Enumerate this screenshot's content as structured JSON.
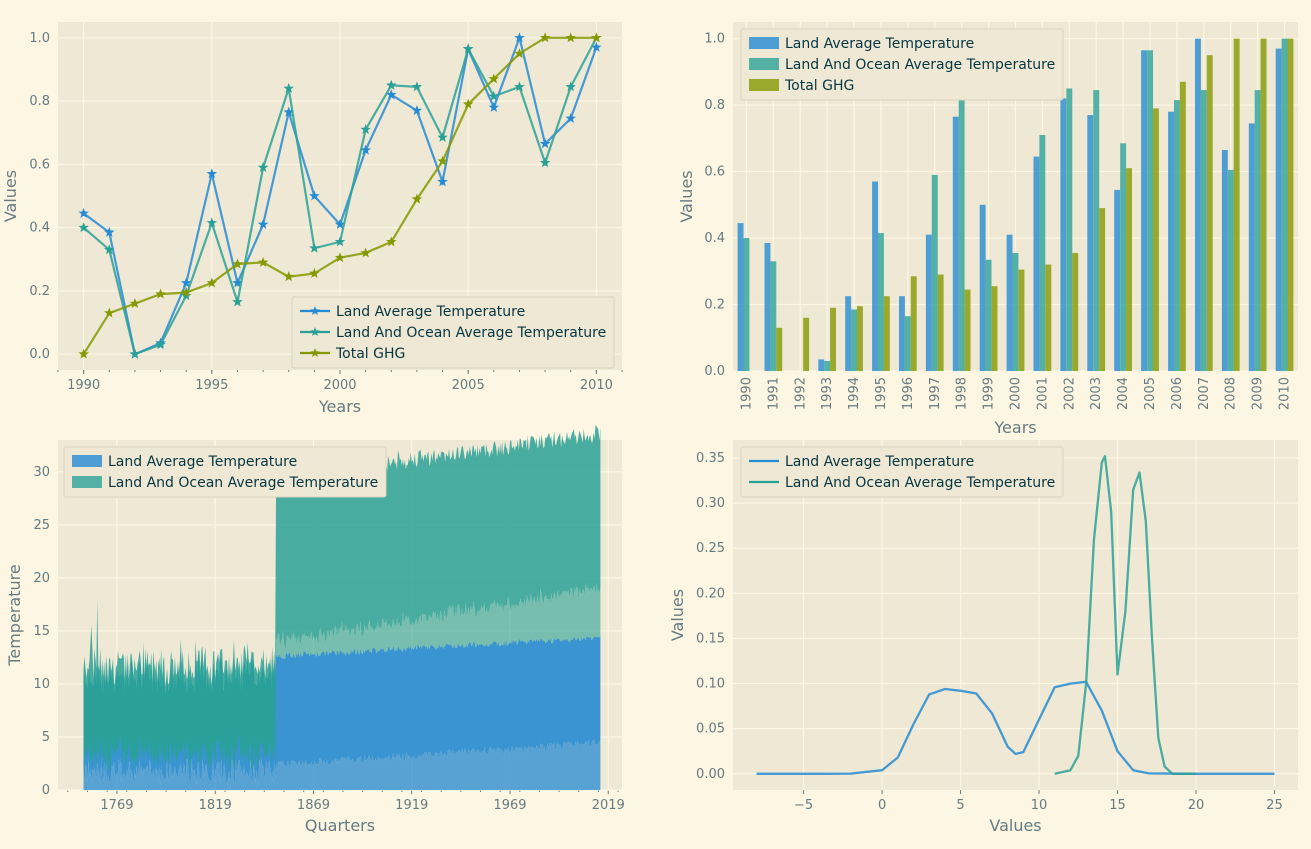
{
  "colors": {
    "figure_bg": "#fdf6e3",
    "axes_bg": "#eee8d5",
    "grid": "#fdf6e3",
    "land": "#268bd2",
    "land_ocean": "#2aa198",
    "ghg": "#859900",
    "text": "#657b83"
  },
  "chart_data": [
    {
      "type": "line",
      "marker": "star",
      "xlabel": "Years",
      "ylabel": "Values",
      "x": [
        1990,
        1991,
        1992,
        1993,
        1994,
        1995,
        1996,
        1997,
        1998,
        1999,
        2000,
        2001,
        2002,
        2003,
        2004,
        2005,
        2006,
        2007,
        2008,
        2009,
        2010
      ],
      "xlim": [
        1989,
        2011
      ],
      "ylim": [
        -0.05,
        1.05
      ],
      "xticks": [
        "1990",
        "1995",
        "2000",
        "2005",
        "2010"
      ],
      "yticks": [
        "0.0",
        "0.2",
        "0.4",
        "0.6",
        "0.8",
        "1.0"
      ],
      "legend_position": "lower-right",
      "series": [
        {
          "name": "Land Average Temperature",
          "color": "land",
          "values": [
            0.445,
            0.385,
            0.0,
            0.035,
            0.225,
            0.57,
            0.225,
            0.41,
            0.765,
            0.5,
            0.41,
            0.645,
            0.82,
            0.77,
            0.545,
            0.965,
            0.78,
            1.0,
            0.665,
            0.745,
            0.97
          ]
        },
        {
          "name": "Land And Ocean Average Temperature",
          "color": "land_ocean",
          "values": [
            0.4,
            0.33,
            0.0,
            0.03,
            0.185,
            0.415,
            0.165,
            0.59,
            0.84,
            0.335,
            0.355,
            0.71,
            0.85,
            0.845,
            0.685,
            0.965,
            0.815,
            0.845,
            0.605,
            0.845,
            1.0
          ]
        },
        {
          "name": "Total GHG",
          "color": "ghg",
          "values": [
            0.0,
            0.13,
            0.16,
            0.19,
            0.195,
            0.225,
            0.285,
            0.29,
            0.245,
            0.255,
            0.305,
            0.32,
            0.355,
            0.49,
            0.61,
            0.79,
            0.87,
            0.95,
            1.0,
            1.0,
            1.0
          ]
        }
      ]
    },
    {
      "type": "bar",
      "xlabel": "Years",
      "ylabel": "Values",
      "categories": [
        "1990",
        "1991",
        "1992",
        "1993",
        "1994",
        "1995",
        "1996",
        "1997",
        "1998",
        "1999",
        "2000",
        "2001",
        "2002",
        "2003",
        "2004",
        "2005",
        "2006",
        "2007",
        "2008",
        "2009",
        "2010"
      ],
      "ylim": [
        0,
        1.05
      ],
      "yticks": [
        "0.0",
        "0.2",
        "0.4",
        "0.6",
        "0.8",
        "1.0"
      ],
      "legend_position": "upper-left",
      "series": [
        {
          "name": "Land Average Temperature",
          "color": "land",
          "values": [
            0.445,
            0.385,
            0.0,
            0.035,
            0.225,
            0.57,
            0.225,
            0.41,
            0.765,
            0.5,
            0.41,
            0.645,
            0.82,
            0.77,
            0.545,
            0.965,
            0.78,
            1.0,
            0.665,
            0.745,
            0.97
          ]
        },
        {
          "name": "Land And Ocean Average Temperature",
          "color": "land_ocean",
          "values": [
            0.4,
            0.33,
            0.0,
            0.03,
            0.185,
            0.415,
            0.165,
            0.59,
            0.84,
            0.335,
            0.355,
            0.71,
            0.85,
            0.845,
            0.685,
            0.965,
            0.815,
            0.845,
            0.605,
            0.845,
            1.0
          ]
        },
        {
          "name": "Total GHG",
          "color": "ghg",
          "values": [
            0.0,
            0.13,
            0.16,
            0.19,
            0.195,
            0.225,
            0.285,
            0.29,
            0.245,
            0.255,
            0.305,
            0.32,
            0.355,
            0.49,
            0.61,
            0.79,
            0.87,
            0.95,
            1.0,
            1.0,
            1.0
          ]
        }
      ]
    },
    {
      "type": "area",
      "xlabel": "Quarters",
      "ylabel": "Temperature",
      "xlim": [
        1739,
        2026
      ],
      "ylim": [
        0,
        33
      ],
      "xticks": [
        1769,
        1819,
        1869,
        1919,
        1969,
        2019
      ],
      "yticks": [
        0,
        5,
        10,
        15,
        20,
        25,
        30
      ],
      "data_start": 1752,
      "data_end": 2015,
      "ocean_series_start": 1850,
      "legend_position": "upper-left",
      "series": [
        {
          "name": "Land Average Temperature",
          "color": "land",
          "approx_range_before_1850": [
            1,
            12
          ],
          "approx_range_after_1850": [
            2,
            14.5
          ]
        },
        {
          "name": "Land And Ocean Average Temperature",
          "color": "land_ocean",
          "approx_range_before_1850": [
            2,
            14
          ],
          "approx_range_after_1850": [
            12,
            31.5
          ]
        }
      ]
    },
    {
      "type": "line",
      "subtype": "density",
      "xlabel": "Values",
      "ylabel": "Values",
      "xlim": [
        -9.5,
        26.5
      ],
      "ylim": [
        -0.018,
        0.37
      ],
      "xticks": [
        "−5",
        "0",
        "5",
        "10",
        "15",
        "20",
        "25"
      ],
      "xtick_values": [
        -5,
        0,
        5,
        10,
        15,
        20,
        25
      ],
      "yticks": [
        "0.00",
        "0.05",
        "0.10",
        "0.15",
        "0.20",
        "0.25",
        "0.30",
        "0.35"
      ],
      "ytick_values": [
        0,
        0.05,
        0.1,
        0.15,
        0.2,
        0.25,
        0.3,
        0.35
      ],
      "legend_position": "upper-left",
      "series": [
        {
          "name": "Land Average Temperature",
          "color": "land",
          "x": [
            -8,
            -4,
            -2,
            0,
            1,
            2,
            3,
            4,
            5,
            6,
            7,
            8,
            8.5,
            9,
            10,
            11,
            12,
            13,
            14,
            15,
            16,
            17,
            20,
            25
          ],
          "values": [
            0,
            0,
            0.0002,
            0.004,
            0.018,
            0.055,
            0.088,
            0.094,
            0.092,
            0.089,
            0.067,
            0.03,
            0.022,
            0.024,
            0.06,
            0.096,
            0.1,
            0.102,
            0.07,
            0.025,
            0.004,
            0.0004,
            0,
            0
          ]
        },
        {
          "name": "Land And Ocean Average Temperature",
          "color": "land_ocean",
          "x": [
            11,
            12,
            12.5,
            13,
            13.5,
            14,
            14.2,
            14.6,
            15,
            15.5,
            16,
            16.4,
            16.8,
            17.2,
            17.6,
            18,
            18.5,
            20
          ],
          "values": [
            0,
            0.004,
            0.02,
            0.1,
            0.26,
            0.345,
            0.352,
            0.29,
            0.11,
            0.18,
            0.315,
            0.334,
            0.28,
            0.15,
            0.04,
            0.008,
            0,
            0
          ]
        }
      ]
    }
  ]
}
